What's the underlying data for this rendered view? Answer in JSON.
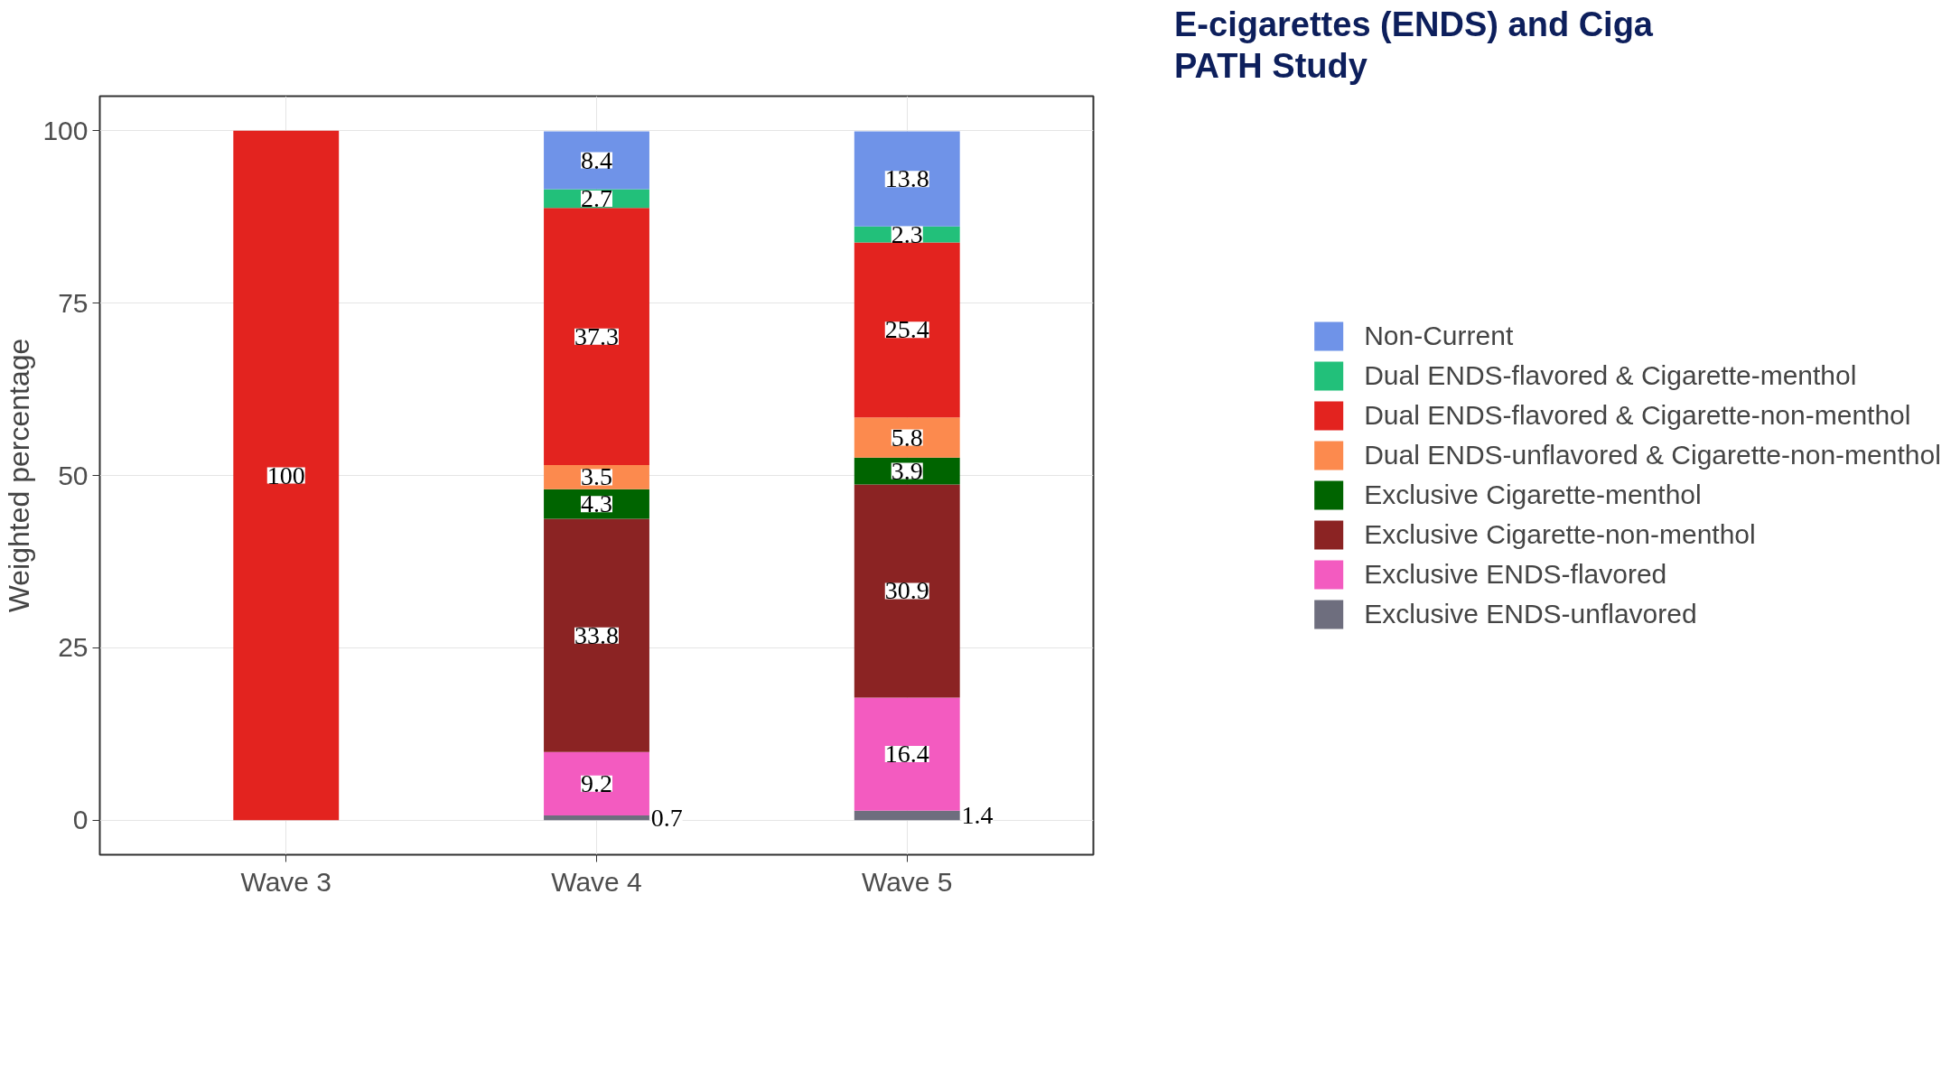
{
  "chart_data": {
    "type": "bar",
    "stacked": true,
    "title": "E-cigarettes (ENDS) and Ciga\nPATH Study",
    "ylabel": "Weighted percentage",
    "categories": [
      "Wave 3",
      "Wave 4",
      "Wave 5"
    ],
    "series": [
      {
        "name": "Exclusive ENDS-unflavored",
        "color": "#6e6e7e",
        "values": [
          null,
          0.7,
          1.4
        ]
      },
      {
        "name": "Exclusive ENDS-flavored",
        "color": "#f35bc0",
        "values": [
          null,
          9.2,
          16.4
        ]
      },
      {
        "name": "Exclusive Cigarette-non-menthol",
        "color": "#8b2323",
        "values": [
          null,
          33.8,
          30.9
        ]
      },
      {
        "name": "Exclusive Cigarette-menthol",
        "color": "#006400",
        "values": [
          null,
          4.3,
          3.9
        ]
      },
      {
        "name": "Dual ENDS-unflavored & Cigarette-non-menthol",
        "color": "#fc8a4e",
        "values": [
          null,
          3.5,
          5.8
        ]
      },
      {
        "name": "Dual ENDS-flavored & Cigarette-non-menthol",
        "color": "#e3231f",
        "values": [
          100,
          37.3,
          25.4
        ]
      },
      {
        "name": "Dual ENDS-flavored & Cigarette-menthol",
        "color": "#22c07a",
        "values": [
          null,
          2.7,
          2.3
        ]
      },
      {
        "name": "Non-Current",
        "color": "#6f93e8",
        "values": [
          null,
          8.4,
          13.8
        ]
      }
    ],
    "ylim": [
      -5,
      105
    ],
    "yticks": [
      0,
      25,
      50,
      75,
      100
    ],
    "grid": true,
    "legend": "right",
    "data_labels": true
  }
}
